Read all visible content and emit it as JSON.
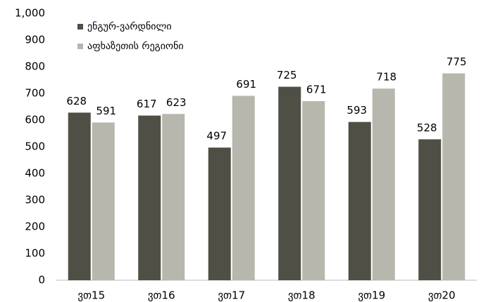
{
  "chart_data": {
    "type": "bar",
    "categories": [
      "ვთ15",
      "ვთ16",
      "ვთ17",
      "ვთ18",
      "ვთ19",
      "ვთ20"
    ],
    "series": [
      {
        "name": "ენგურ-ვარდნილი",
        "color": "#4f4f45",
        "values": [
          628,
          617,
          497,
          725,
          593,
          528
        ]
      },
      {
        "name": "აფხაზეთის რეგიონი",
        "color": "#b7b7ae",
        "values": [
          591,
          623,
          691,
          671,
          718,
          775
        ]
      }
    ],
    "ylim": [
      0,
      1000
    ],
    "yticks": [
      0,
      100,
      200,
      300,
      400,
      500,
      600,
      700,
      800,
      900,
      {
        "value": 1000,
        "label": "1,000"
      }
    ],
    "grid": false
  }
}
